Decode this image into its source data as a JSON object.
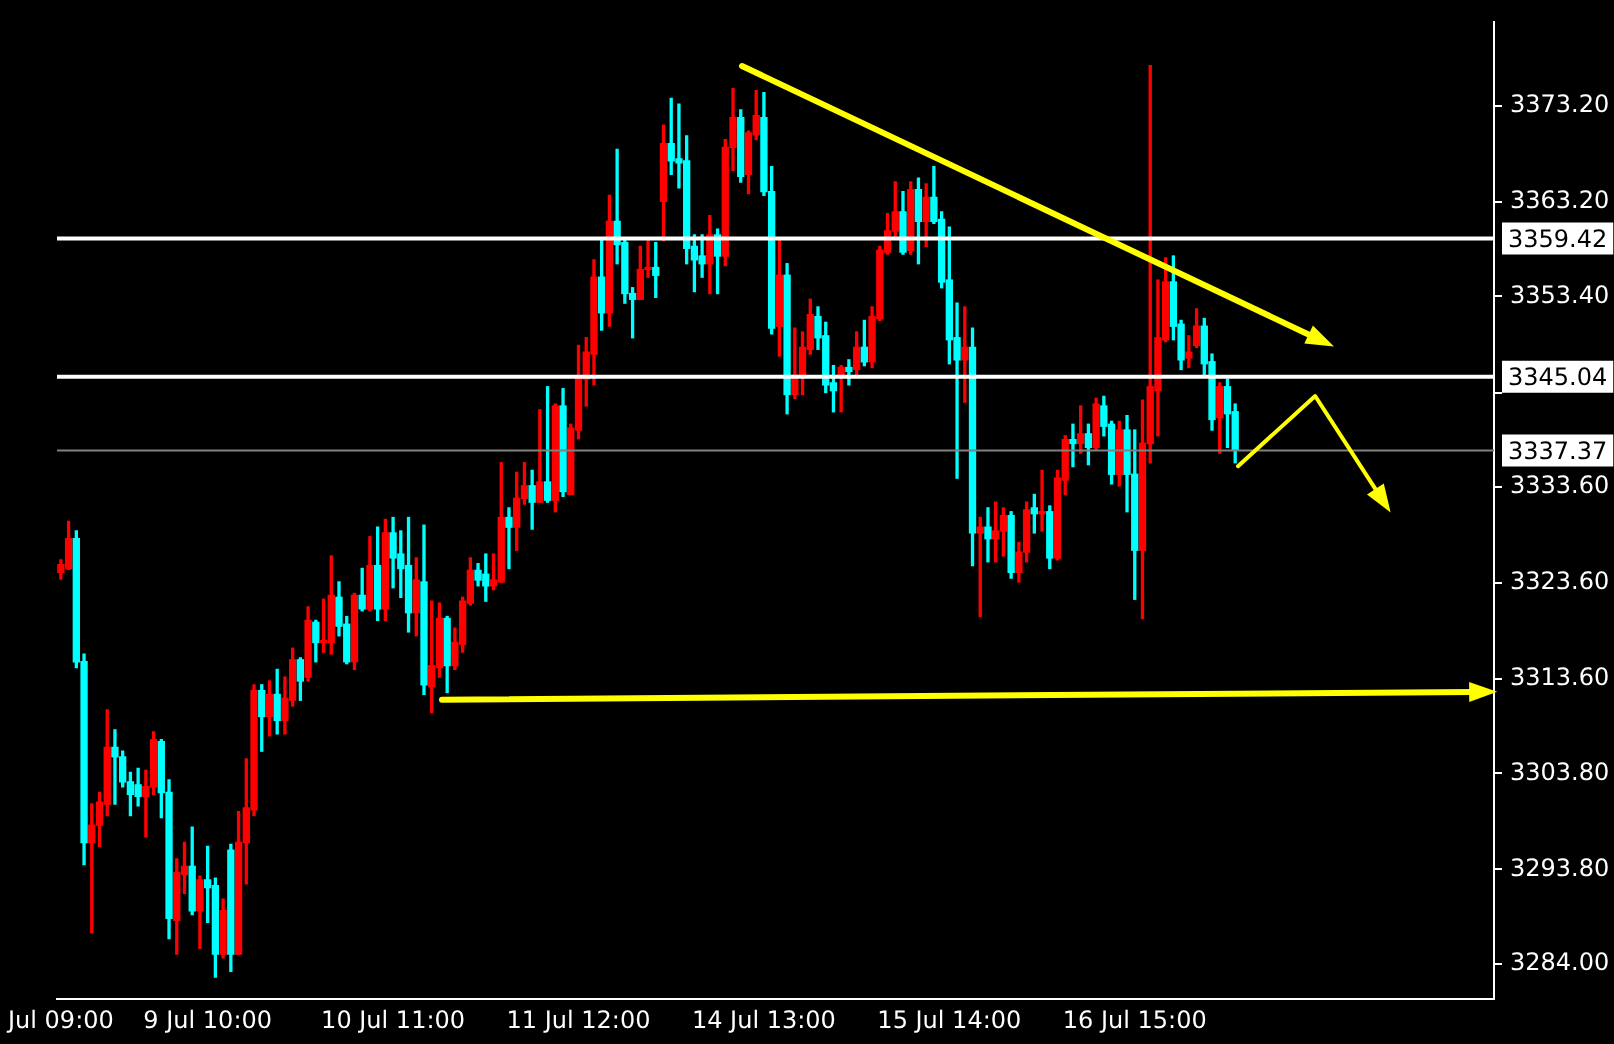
{
  "chart_data": {
    "type": "candlestick",
    "categories": [
      "Jul 09:00",
      null,
      null,
      null,
      null,
      null,
      null,
      null,
      null,
      null,
      null,
      null,
      null,
      null,
      null,
      null,
      null,
      null,
      null,
      "9 Jul 10:00",
      null,
      null,
      null,
      null,
      null,
      null,
      null,
      null,
      null,
      null,
      null,
      null,
      null,
      null,
      null,
      null,
      null,
      null,
      null,
      null,
      null,
      null,
      null,
      "10 Jul 11:00",
      null,
      null,
      null,
      null,
      null,
      null,
      null,
      null,
      null,
      null,
      null,
      null,
      null,
      null,
      null,
      null,
      null,
      null,
      null,
      null,
      null,
      null,
      null,
      "11 Jul 12:00",
      null,
      null,
      null,
      null,
      null,
      null,
      null,
      null,
      null,
      null,
      null,
      null,
      null,
      null,
      null,
      null,
      null,
      null,
      null,
      null,
      null,
      null,
      null,
      "14 Jul 13:00",
      null,
      null,
      null,
      null,
      null,
      null,
      null,
      null,
      null,
      null,
      null,
      null,
      null,
      null,
      null,
      null,
      null,
      null,
      null,
      null,
      null,
      null,
      null,
      "15 Jul 14:00",
      null,
      null,
      null,
      null,
      null,
      null,
      null,
      null,
      null,
      null,
      null,
      null,
      null,
      null,
      null,
      null,
      null,
      null,
      null,
      null,
      null,
      null,
      null,
      "16 Jul 15:00",
      null,
      null,
      null,
      null,
      null,
      null,
      null,
      null,
      null,
      null,
      null,
      null,
      null,
      null,
      null,
      null,
      null,
      null,
      null,
      null,
      null,
      null,
      null,
      null,
      null,
      null,
      null,
      null,
      null,
      null,
      null,
      null,
      null,
      null,
      null,
      null,
      null,
      null,
      null,
      null,
      null,
      null,
      null,
      null,
      null,
      null
    ],
    "ohlc": [
      [
        3324.7,
        3326.0,
        3324.0,
        3325.5
      ],
      [
        3325.1,
        3330.0,
        3325.0,
        3328.2
      ],
      [
        3328.2,
        3329.0,
        3314.8,
        3315.4
      ],
      [
        3315.4,
        3316.2,
        3294.3,
        3296.6
      ],
      [
        3296.6,
        3300.6,
        3287.2,
        3298.4
      ],
      [
        3298.4,
        3301.8,
        3296.2,
        3300.8
      ],
      [
        3300.6,
        3310.4,
        3299.4,
        3306.5
      ],
      [
        3306.5,
        3308.3,
        3300.6,
        3305.5
      ],
      [
        3305.5,
        3306.1,
        3302.4,
        3302.9
      ],
      [
        3302.9,
        3303.9,
        3299.4,
        3301.6
      ],
      [
        3302.6,
        3304.3,
        3300.4,
        3301.4
      ],
      [
        3301.4,
        3304.1,
        3297.2,
        3302.4
      ],
      [
        3302.4,
        3308.1,
        3301.6,
        3307.3
      ],
      [
        3307.1,
        3307.3,
        3299.2,
        3301.8
      ],
      [
        3301.8,
        3303.1,
        3286.6,
        3288.7
      ],
      [
        3288.5,
        3294.9,
        3285.0,
        3293.5
      ],
      [
        3293.3,
        3296.6,
        3291.3,
        3294.1
      ],
      [
        3294.1,
        3298.2,
        3289.1,
        3289.5
      ],
      [
        3289.5,
        3293.1,
        3285.6,
        3292.7
      ],
      [
        3292.7,
        3296.2,
        3288.3,
        3291.9
      ],
      [
        3292.1,
        3292.9,
        3282.6,
        3285.0
      ],
      [
        3285.0,
        3290.7,
        3284.6,
        3289.5
      ],
      [
        3295.8,
        3296.4,
        3283.2,
        3285.0
      ],
      [
        3285.0,
        3299.8,
        3285.0,
        3296.6
      ],
      [
        3296.6,
        3305.3,
        3292.3,
        3300.2
      ],
      [
        3300.0,
        3313.0,
        3299.4,
        3312.4
      ],
      [
        3312.4,
        3313.0,
        3306.1,
        3309.7
      ],
      [
        3309.7,
        3313.4,
        3307.7,
        3312.0
      ],
      [
        3312.0,
        3314.6,
        3307.9,
        3309.3
      ],
      [
        3309.3,
        3313.8,
        3307.9,
        3311.6
      ],
      [
        3311.4,
        3316.8,
        3310.8,
        3315.6
      ],
      [
        3315.6,
        3315.8,
        3311.4,
        3313.4
      ],
      [
        3313.8,
        3321.1,
        3313.4,
        3319.7
      ],
      [
        3319.5,
        3319.7,
        3315.4,
        3317.4
      ],
      [
        3317.4,
        3321.9,
        3316.4,
        3317.6
      ],
      [
        3317.4,
        3326.4,
        3316.2,
        3322.3
      ],
      [
        3322.1,
        3323.7,
        3318.1,
        3319.1
      ],
      [
        3319.3,
        3320.1,
        3315.2,
        3315.4
      ],
      [
        3315.4,
        3322.5,
        3314.6,
        3322.3
      ],
      [
        3322.3,
        3325.1,
        3320.7,
        3320.9
      ],
      [
        3320.9,
        3328.4,
        3320.7,
        3325.4
      ],
      [
        3325.4,
        3329.4,
        3319.7,
        3320.9
      ],
      [
        3320.9,
        3330.2,
        3319.7,
        3328.8
      ],
      [
        3328.8,
        3330.4,
        3323.1,
        3326.2
      ],
      [
        3326.6,
        3329.0,
        3322.1,
        3325.1
      ],
      [
        3325.4,
        3330.4,
        3318.5,
        3320.5
      ],
      [
        3320.5,
        3326.2,
        3318.1,
        3323.9
      ],
      [
        3323.7,
        3329.6,
        3312.0,
        3313.0
      ],
      [
        3312.8,
        3321.7,
        3310.1,
        3315.0
      ],
      [
        3314.8,
        3321.5,
        3313.8,
        3319.9
      ],
      [
        3319.9,
        3320.1,
        3312.2,
        3315.0
      ],
      [
        3315.0,
        3318.9,
        3314.6,
        3317.4
      ],
      [
        3317.2,
        3322.1,
        3316.4,
        3321.7
      ],
      [
        3321.5,
        3326.2,
        3321.3,
        3324.9
      ],
      [
        3324.9,
        3325.6,
        3323.3,
        3323.9
      ],
      [
        3324.5,
        3326.6,
        3321.7,
        3323.3
      ],
      [
        3323.3,
        3326.6,
        3322.9,
        3323.9
      ],
      [
        3323.7,
        3336.1,
        3323.7,
        3330.4
      ],
      [
        3330.4,
        3331.4,
        3325.1,
        3329.4
      ],
      [
        3329.4,
        3335.1,
        3327.0,
        3332.4
      ],
      [
        3332.4,
        3336.1,
        3331.8,
        3333.7
      ],
      [
        3333.7,
        3335.3,
        3329.2,
        3332.0
      ],
      [
        3332.0,
        3341.6,
        3332.0,
        3334.1
      ],
      [
        3334.1,
        3344.0,
        3332.0,
        3332.2
      ],
      [
        3332.2,
        3342.2,
        3331.0,
        3342.0
      ],
      [
        3342.0,
        3343.8,
        3332.6,
        3333.1
      ],
      [
        3332.8,
        3340.1,
        3332.8,
        3339.7
      ],
      [
        3339.5,
        3348.3,
        3338.6,
        3345.0
      ],
      [
        3344.8,
        3349.1,
        3342.0,
        3347.6
      ],
      [
        3347.4,
        3357.2,
        3344.2,
        3355.4
      ],
      [
        3355.4,
        3359.4,
        3349.9,
        3351.7
      ],
      [
        3351.7,
        3363.9,
        3350.3,
        3361.2
      ],
      [
        3361.2,
        3368.7,
        3356.8,
        3358.8
      ],
      [
        3359.0,
        3359.4,
        3352.7,
        3353.7
      ],
      [
        3353.7,
        3354.3,
        3349.1,
        3353.1
      ],
      [
        3353.1,
        3358.6,
        3353.1,
        3356.2
      ],
      [
        3356.2,
        3359.4,
        3355.4,
        3356.4
      ],
      [
        3356.4,
        3359.0,
        3353.3,
        3355.6
      ],
      [
        3363.3,
        3371.2,
        3359.2,
        3369.3
      ],
      [
        3369.3,
        3374.0,
        3366.1,
        3367.5
      ],
      [
        3367.7,
        3373.4,
        3364.7,
        3367.3
      ],
      [
        3367.5,
        3370.1,
        3356.8,
        3358.4
      ],
      [
        3358.6,
        3359.8,
        3353.9,
        3357.2
      ],
      [
        3357.6,
        3359.8,
        3355.4,
        3356.8
      ],
      [
        3356.8,
        3361.8,
        3353.7,
        3359.8
      ],
      [
        3359.8,
        3360.4,
        3353.7,
        3357.6
      ],
      [
        3357.6,
        3369.7,
        3356.6,
        3368.9
      ],
      [
        3368.9,
        3375.0,
        3366.5,
        3372.0
      ],
      [
        3372.0,
        3372.8,
        3365.3,
        3365.9
      ],
      [
        3366.1,
        3370.6,
        3364.1,
        3370.4
      ],
      [
        3370.2,
        3374.8,
        3369.7,
        3372.2
      ],
      [
        3372.0,
        3374.6,
        3363.9,
        3364.3
      ],
      [
        3364.3,
        3366.9,
        3349.5,
        3350.1
      ],
      [
        3350.3,
        3359.4,
        3347.2,
        3355.6
      ],
      [
        3355.6,
        3356.8,
        3341.2,
        3343.2
      ],
      [
        3343.2,
        3350.1,
        3342.8,
        3345.2
      ],
      [
        3345.2,
        3349.7,
        3343.2,
        3348.1
      ],
      [
        3347.9,
        3353.1,
        3347.4,
        3351.5
      ],
      [
        3351.3,
        3352.3,
        3347.9,
        3349.1
      ],
      [
        3349.3,
        3350.7,
        3343.4,
        3344.2
      ],
      [
        3344.4,
        3346.2,
        3341.4,
        3343.6
      ],
      [
        3345.0,
        3346.2,
        3341.4,
        3346.0
      ],
      [
        3346.0,
        3346.8,
        3344.2,
        3345.6
      ],
      [
        3345.8,
        3349.7,
        3345.0,
        3348.1
      ],
      [
        3348.1,
        3350.9,
        3346.2,
        3346.6
      ],
      [
        3346.6,
        3352.3,
        3346.0,
        3351.3
      ],
      [
        3351.1,
        3358.6,
        3350.9,
        3358.2
      ],
      [
        3358.0,
        3362.0,
        3357.8,
        3360.2
      ],
      [
        3360.2,
        3365.3,
        3359.4,
        3362.2
      ],
      [
        3362.2,
        3364.3,
        3357.8,
        3358.0
      ],
      [
        3358.2,
        3365.3,
        3357.8,
        3364.5
      ],
      [
        3364.5,
        3365.7,
        3356.8,
        3361.2
      ],
      [
        3361.2,
        3365.1,
        3358.6,
        3363.7
      ],
      [
        3363.7,
        3366.9,
        3361.0,
        3361.2
      ],
      [
        3361.4,
        3362.2,
        3354.3,
        3354.9
      ],
      [
        3355.1,
        3360.6,
        3346.4,
        3348.9
      ],
      [
        3349.1,
        3352.7,
        3334.5,
        3346.8
      ],
      [
        3346.8,
        3352.3,
        3342.4,
        3348.1
      ],
      [
        3348.1,
        3350.1,
        3325.4,
        3328.8
      ],
      [
        3328.8,
        3330.4,
        3320.1,
        3329.4
      ],
      [
        3329.4,
        3331.4,
        3325.8,
        3328.2
      ],
      [
        3328.2,
        3332.0,
        3325.8,
        3329.0
      ],
      [
        3329.0,
        3331.4,
        3326.4,
        3330.6
      ],
      [
        3330.6,
        3331.0,
        3324.1,
        3324.7
      ],
      [
        3324.7,
        3327.8,
        3323.7,
        3326.8
      ],
      [
        3326.8,
        3332.0,
        3325.8,
        3331.2
      ],
      [
        3331.4,
        3332.8,
        3328.8,
        3330.8
      ],
      [
        3330.8,
        3335.3,
        3329.0,
        3331.0
      ],
      [
        3331.0,
        3331.6,
        3325.1,
        3326.2
      ],
      [
        3326.2,
        3335.3,
        3326.0,
        3334.5
      ],
      [
        3334.3,
        3338.9,
        3332.8,
        3338.5
      ],
      [
        3338.5,
        3340.1,
        3335.7,
        3338.1
      ],
      [
        3338.1,
        3342.0,
        3337.1,
        3339.1
      ],
      [
        3339.1,
        3340.1,
        3335.9,
        3337.7
      ],
      [
        3337.7,
        3342.8,
        3337.5,
        3342.2
      ],
      [
        3342.0,
        3343.0,
        3338.9,
        3339.9
      ],
      [
        3340.1,
        3340.4,
        3333.9,
        3334.9
      ],
      [
        3334.9,
        3340.4,
        3333.7,
        3339.5
      ],
      [
        3339.5,
        3341.0,
        3331.0,
        3334.9
      ],
      [
        3334.9,
        3339.5,
        3321.9,
        3327.0
      ],
      [
        3327.0,
        3342.6,
        3319.9,
        3338.1
      ],
      [
        3338.1,
        3377.4,
        3336.1,
        3344.0
      ],
      [
        3343.6,
        3355.1,
        3338.9,
        3349.1
      ],
      [
        3348.9,
        3357.4,
        3348.7,
        3354.9
      ],
      [
        3354.9,
        3357.6,
        3348.9,
        3350.3
      ],
      [
        3350.5,
        3350.9,
        3345.8,
        3346.8
      ],
      [
        3347.0,
        3349.3,
        3346.0,
        3347.6
      ],
      [
        3348.3,
        3352.1,
        3348.1,
        3350.3
      ],
      [
        3350.3,
        3351.1,
        3345.2,
        3346.4
      ],
      [
        3346.6,
        3347.4,
        3339.5,
        3340.6
      ],
      [
        3340.8,
        3344.4,
        3337.1,
        3344.0
      ],
      [
        3344.0,
        3344.8,
        3337.7,
        3341.2
      ],
      [
        3341.4,
        3342.2,
        3336.1,
        3337.4
      ],
      null,
      null,
      null,
      null,
      null,
      null,
      null,
      null,
      null,
      null,
      null,
      null,
      null,
      null,
      null,
      null,
      null,
      null,
      null,
      null,
      null,
      null,
      null,
      null,
      null,
      null,
      null,
      null,
      null,
      null,
      null,
      null,
      null
    ],
    "colors": [
      "#ff0000",
      "#ff0000",
      "#00ffff",
      "#00ffff",
      "#ff0000",
      "#ff0000",
      "#ff0000",
      "#00ffff",
      "#00ffff",
      "#00ffff",
      "#00ffff",
      "#ff0000",
      "#ff0000",
      "#00ffff",
      "#00ffff",
      "#ff0000",
      "#ff0000",
      "#00ffff",
      "#ff0000",
      "#00ffff",
      "#00ffff",
      "#ff0000",
      "#00ffff",
      "#ff0000",
      "#ff0000",
      "#ff0000",
      "#00ffff",
      "#ff0000",
      "#00ffff",
      "#ff0000",
      "#ff0000",
      "#00ffff",
      "#ff0000",
      "#00ffff",
      "#ff0000",
      "#ff0000",
      "#00ffff",
      "#00ffff",
      "#ff0000",
      "#00ffff",
      "#ff0000",
      "#00ffff",
      "#ff0000",
      "#00ffff",
      "#00ffff",
      "#00ffff",
      "#ff0000",
      "#00ffff",
      "#ff0000",
      "#ff0000",
      "#00ffff",
      "#ff0000",
      "#ff0000",
      "#ff0000",
      "#00ffff",
      "#00ffff",
      "#ff0000",
      "#ff0000",
      "#00ffff",
      "#ff0000",
      "#ff0000",
      "#00ffff",
      "#ff0000",
      "#00ffff",
      "#ff0000",
      "#00ffff",
      "#ff0000",
      "#ff0000",
      "#ff0000",
      "#ff0000",
      "#00ffff",
      "#ff0000",
      "#00ffff",
      "#00ffff",
      "#00ffff",
      "#ff0000",
      "#ff0000",
      "#00ffff",
      "#ff0000",
      "#00ffff",
      "#00ffff",
      "#00ffff",
      "#00ffff",
      "#00ffff",
      "#ff0000",
      "#00ffff",
      "#ff0000",
      "#ff0000",
      "#00ffff",
      "#ff0000",
      "#ff0000",
      "#00ffff",
      "#00ffff",
      "#ff0000",
      "#00ffff",
      "#ff0000",
      "#ff0000",
      "#ff0000",
      "#00ffff",
      "#00ffff",
      "#00ffff",
      "#ff0000",
      "#00ffff",
      "#ff0000",
      "#00ffff",
      "#ff0000",
      "#ff0000",
      "#ff0000",
      "#ff0000",
      "#00ffff",
      "#ff0000",
      "#00ffff",
      "#ff0000",
      "#00ffff",
      "#00ffff",
      "#00ffff",
      "#00ffff",
      "#ff0000",
      "#00ffff",
      "#ff0000",
      "#00ffff",
      "#ff0000",
      "#ff0000",
      "#00ffff",
      "#ff0000",
      "#ff0000",
      "#00ffff",
      "#ff0000",
      "#00ffff",
      "#ff0000",
      "#ff0000",
      "#00ffff",
      "#ff0000",
      "#00ffff",
      "#ff0000",
      "#00ffff",
      "#00ffff",
      "#ff0000",
      "#00ffff",
      "#00ffff",
      "#ff0000",
      "#ff0000",
      "#ff0000",
      "#ff0000",
      "#00ffff",
      "#00ffff",
      "#ff0000",
      "#ff0000",
      "#00ffff",
      "#00ffff",
      "#ff0000",
      "#00ffff",
      "#00ffff",
      null,
      null,
      null,
      null,
      null,
      null,
      null,
      null,
      null,
      null,
      null,
      null,
      null,
      null,
      null,
      null,
      null,
      null,
      null,
      null,
      null,
      null,
      null,
      null,
      null,
      null,
      null,
      null,
      null,
      null,
      null,
      null,
      null
    ],
    "ylim": [
      3280.3,
      3381.9
    ],
    "yticks": [
      {
        "value": 3373.2,
        "label": "3373.20"
      },
      {
        "value": 3363.2,
        "label": "3363.20"
      },
      {
        "value": 3353.4,
        "label": "3353.40"
      },
      {
        "value": 3343.4,
        "label": null
      },
      {
        "value": 3333.6,
        "label": "3333.60"
      },
      {
        "value": 3323.6,
        "label": "3323.60"
      },
      {
        "value": 3313.6,
        "label": "3313.60"
      },
      {
        "value": 3303.8,
        "label": "3303.80"
      },
      {
        "value": 3293.8,
        "label": "3293.80"
      },
      {
        "value": 3284.0,
        "label": "3284.00"
      }
    ],
    "ref_lines": [
      {
        "axis": "y",
        "value": 3359.42,
        "label": "3359.42",
        "color": "#ffffff"
      },
      {
        "axis": "y",
        "value": 3345.04,
        "label": "3345.04",
        "color": "#ffffff"
      },
      {
        "axis": "y",
        "value": 3337.37,
        "label": "3337.37",
        "color": "#808080"
      }
    ]
  }
}
